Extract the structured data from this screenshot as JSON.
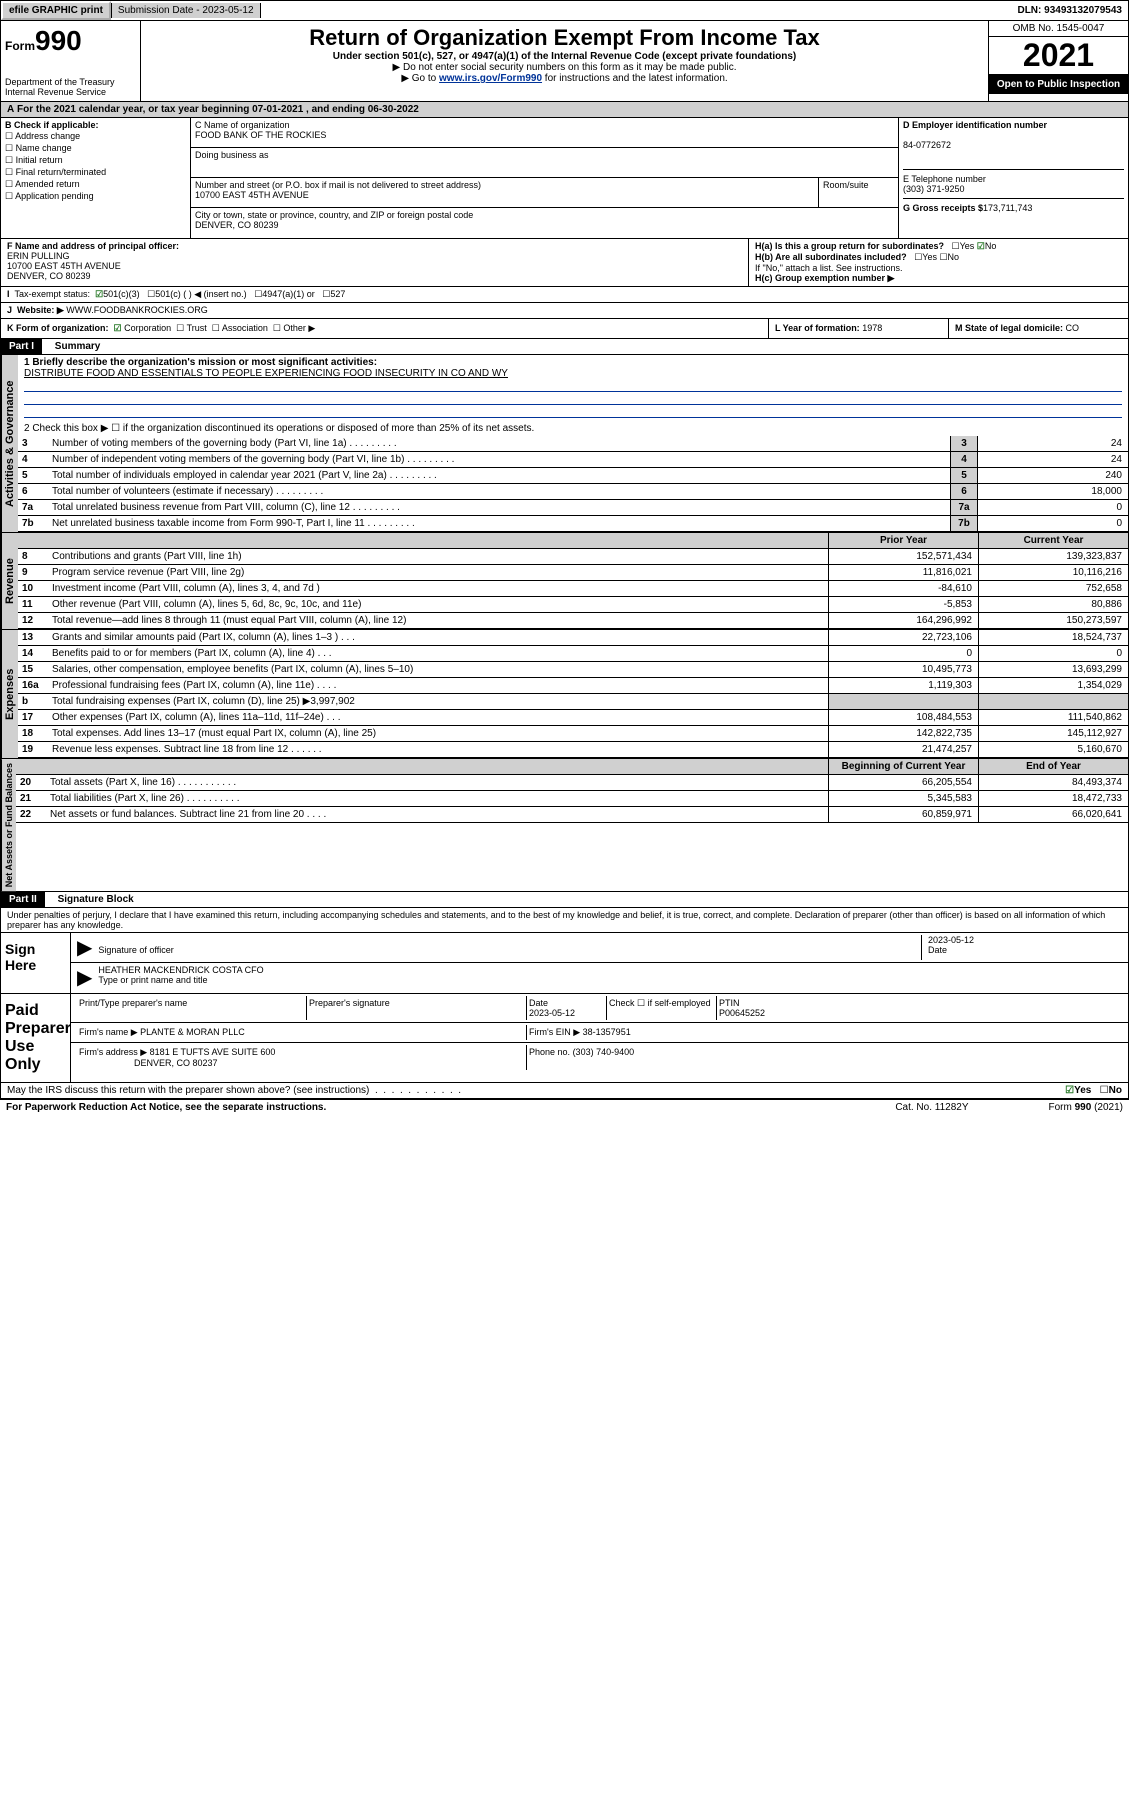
{
  "topbar": {
    "efile": "efile GRAPHIC print",
    "sub_label": "Submission Date - 2023-05-12",
    "dln": "DLN: 93493132079543"
  },
  "header": {
    "form_prefix": "Form",
    "form_num": "990",
    "dept": "Department of the Treasury",
    "irs": "Internal Revenue Service",
    "title": "Return of Organization Exempt From Income Tax",
    "subtitle": "Under section 501(c), 527, or 4947(a)(1) of the Internal Revenue Code (except private foundations)",
    "instr1": "▶ Do not enter social security numbers on this form as it may be made public.",
    "instr2_pre": "▶ Go to ",
    "instr2_link": "www.irs.gov/Form990",
    "instr2_post": " for instructions and the latest information.",
    "omb": "OMB No. 1545-0047",
    "year": "2021",
    "open": "Open to Public Inspection"
  },
  "sectionA": "For the 2021 calendar year, or tax year beginning 07-01-2021   , and ending 06-30-2022",
  "colB": {
    "header": "B Check if applicable:",
    "items": [
      "Address change",
      "Name change",
      "Initial return",
      "Final return/terminated",
      "Amended return",
      "Application pending"
    ]
  },
  "colC": {
    "name_label": "C Name of organization",
    "name": "FOOD BANK OF THE ROCKIES",
    "dba_label": "Doing business as",
    "addr_label": "Number and street (or P.O. box if mail is not delivered to street address)",
    "room_label": "Room/suite",
    "addr": "10700 EAST 45TH AVENUE",
    "city_label": "City or town, state or province, country, and ZIP or foreign postal code",
    "city": "DENVER, CO  80239"
  },
  "colD": {
    "ein_label": "D Employer identification number",
    "ein": "84-0772672",
    "tel_label": "E Telephone number",
    "tel": "(303) 371-9250",
    "gross_label": "G Gross receipts $",
    "gross": "173,711,743"
  },
  "rowF": {
    "label": "F  Name and address of principal officer:",
    "name": "ERIN PULLING",
    "addr1": "10700 EAST 45TH AVENUE",
    "addr2": "DENVER, CO  80239"
  },
  "rowH": {
    "ha": "H(a)  Is this a group return for subordinates?",
    "hb": "H(b)  Are all subordinates included?",
    "hb_note": "If \"No,\" attach a list. See instructions.",
    "hc": "H(c)  Group exemption number ▶",
    "yes": "Yes",
    "no": "No"
  },
  "rowI": {
    "label": "Tax-exempt status:",
    "opts": [
      "501(c)(3)",
      "501(c) (  ) ◀ (insert no.)",
      "4947(a)(1) or",
      "527"
    ]
  },
  "rowJ": {
    "label": "Website: ▶",
    "val": "WWW.FOODBANKROCKIES.ORG"
  },
  "rowK": {
    "label": "K Form of organization:",
    "opts": [
      "Corporation",
      "Trust",
      "Association",
      "Other ▶"
    ]
  },
  "rowL": {
    "label": "L Year of formation:",
    "val": "1978"
  },
  "rowM": {
    "label": "M State of legal domicile:",
    "val": "CO"
  },
  "part1": {
    "title": "Part I",
    "subtitle": "Summary",
    "line1_label": "1  Briefly describe the organization's mission or most significant activities:",
    "line1_val": "DISTRIBUTE FOOD AND ESSENTIALS TO PEOPLE EXPERIENCING FOOD INSECURITY IN CO AND WY",
    "line2": "2    Check this box ▶ ☐  if the organization discontinued its operations or disposed of more than 25% of its net assets.",
    "gov_label": "Activities & Governance",
    "rev_label": "Revenue",
    "exp_label": "Expenses",
    "net_label": "Net Assets or Fund Balances",
    "prior_hdr": "Prior Year",
    "curr_hdr": "Current Year",
    "begin_hdr": "Beginning of Current Year",
    "end_hdr": "End of Year"
  },
  "gov_rows": [
    {
      "n": "3",
      "label": "Number of voting members of the governing body (Part VI, line 1a)",
      "val": "24"
    },
    {
      "n": "4",
      "label": "Number of independent voting members of the governing body (Part VI, line 1b)",
      "val": "24"
    },
    {
      "n": "5",
      "label": "Total number of individuals employed in calendar year 2021 (Part V, line 2a)",
      "val": "240"
    },
    {
      "n": "6",
      "label": "Total number of volunteers (estimate if necessary)",
      "val": "18,000"
    },
    {
      "n": "7a",
      "label": "Total unrelated business revenue from Part VIII, column (C), line 12",
      "val": "0"
    },
    {
      "n": "7b",
      "label": "Net unrelated business taxable income from Form 990-T, Part I, line 11",
      "val": "0"
    }
  ],
  "rev_rows": [
    {
      "n": "8",
      "label": "Contributions and grants (Part VIII, line 1h)",
      "prior": "152,571,434",
      "curr": "139,323,837"
    },
    {
      "n": "9",
      "label": "Program service revenue (Part VIII, line 2g)",
      "prior": "11,816,021",
      "curr": "10,116,216"
    },
    {
      "n": "10",
      "label": "Investment income (Part VIII, column (A), lines 3, 4, and 7d )",
      "prior": "-84,610",
      "curr": "752,658"
    },
    {
      "n": "11",
      "label": "Other revenue (Part VIII, column (A), lines 5, 6d, 8c, 9c, 10c, and 11e)",
      "prior": "-5,853",
      "curr": "80,886"
    },
    {
      "n": "12",
      "label": "Total revenue—add lines 8 through 11 (must equal Part VIII, column (A), line 12)",
      "prior": "164,296,992",
      "curr": "150,273,597"
    }
  ],
  "exp_rows": [
    {
      "n": "13",
      "label": "Grants and similar amounts paid (Part IX, column (A), lines 1–3 )   .   .   .",
      "prior": "22,723,106",
      "curr": "18,524,737"
    },
    {
      "n": "14",
      "label": "Benefits paid to or for members (Part IX, column (A), line 4)   .   .   .",
      "prior": "0",
      "curr": "0"
    },
    {
      "n": "15",
      "label": "Salaries, other compensation, employee benefits (Part IX, column (A), lines 5–10)",
      "prior": "10,495,773",
      "curr": "13,693,299"
    },
    {
      "n": "16a",
      "label": "Professional fundraising fees (Part IX, column (A), line 11e)   .   .   .   .",
      "prior": "1,119,303",
      "curr": "1,354,029"
    },
    {
      "n": "b",
      "label": "Total fundraising expenses (Part IX, column (D), line 25) ▶3,997,902",
      "prior": "",
      "curr": "",
      "shaded": true
    },
    {
      "n": "17",
      "label": "Other expenses (Part IX, column (A), lines 11a–11d, 11f–24e)   .   .   .",
      "prior": "108,484,553",
      "curr": "111,540,862"
    },
    {
      "n": "18",
      "label": "Total expenses. Add lines 13–17 (must equal Part IX, column (A), line 25)",
      "prior": "142,822,735",
      "curr": "145,112,927"
    },
    {
      "n": "19",
      "label": "Revenue less expenses. Subtract line 18 from line 12   .   .   .   .   .   .",
      "prior": "21,474,257",
      "curr": "5,160,670"
    }
  ],
  "net_rows": [
    {
      "n": "20",
      "label": "Total assets (Part X, line 16)   .   .   .   .   .   .   .   .   .   .   .",
      "prior": "66,205,554",
      "curr": "84,493,374"
    },
    {
      "n": "21",
      "label": "Total liabilities (Part X, line 26)   .   .   .   .   .   .   .   .   .   .",
      "prior": "5,345,583",
      "curr": "18,472,733"
    },
    {
      "n": "22",
      "label": "Net assets or fund balances. Subtract line 21 from line 20   .   .   .   .",
      "prior": "60,859,971",
      "curr": "66,020,641"
    }
  ],
  "part2": {
    "title": "Part II",
    "subtitle": "Signature Block",
    "decl": "Under penalties of perjury, I declare that I have examined this return, including accompanying schedules and statements, and to the best of my knowledge and belief, it is true, correct, and complete. Declaration of preparer (other than officer) is based on all information of which preparer has any knowledge."
  },
  "sign": {
    "label": "Sign Here",
    "sig_label": "Signature of officer",
    "date_label": "Date",
    "date": "2023-05-12",
    "name": "HEATHER MACKENDRICK COSTA  CFO",
    "name_label": "Type or print name and title"
  },
  "paid": {
    "label": "Paid Preparer Use Only",
    "col1": "Print/Type preparer's name",
    "col2": "Preparer's signature",
    "col3": "Date",
    "date": "2023-05-12",
    "check_label": "Check ☐ if self-employed",
    "ptin_label": "PTIN",
    "ptin": "P00645252",
    "firm_name_label": "Firm's name    ▶",
    "firm_name": "PLANTE & MORAN PLLC",
    "firm_ein_label": "Firm's EIN ▶",
    "firm_ein": "38-1357951",
    "firm_addr_label": "Firm's address ▶",
    "firm_addr1": "8181 E TUFTS AVE SUITE 600",
    "firm_addr2": "DENVER, CO  80237",
    "phone_label": "Phone no.",
    "phone": "(303) 740-9400"
  },
  "footer": {
    "discuss": "May the IRS discuss this return with the preparer shown above? (see instructions)",
    "paperwork": "For Paperwork Reduction Act Notice, see the separate instructions.",
    "cat": "Cat. No. 11282Y",
    "formyr": "Form 990 (2021)"
  }
}
